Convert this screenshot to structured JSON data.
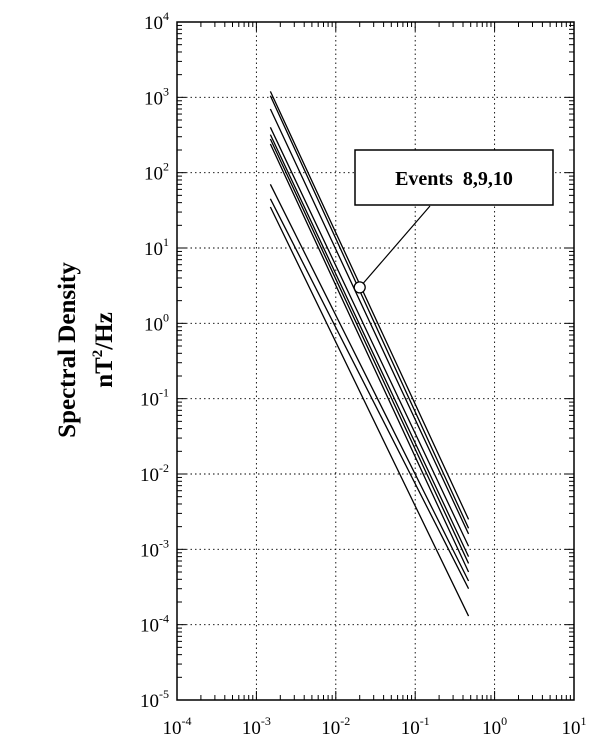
{
  "chart_data": {
    "type": "line",
    "title": "",
    "xlabel": "",
    "ylabel": "Spectral Density",
    "ylabel_units": {
      "base": "nT",
      "exp": "2",
      "rest": "/Hz"
    },
    "x_scale": "log",
    "y_scale": "log",
    "xlim": [
      0.0001,
      10
    ],
    "ylim": [
      1e-05,
      10000
    ],
    "grid": true,
    "x_ticks": [
      {
        "base": "10",
        "exp": "-4",
        "value": 0.0001
      },
      {
        "base": "10",
        "exp": "-3",
        "value": 0.001
      },
      {
        "base": "10",
        "exp": "-2",
        "value": 0.01
      },
      {
        "base": "10",
        "exp": "-1",
        "value": 0.1
      },
      {
        "base": "10",
        "exp": "0",
        "value": 1
      },
      {
        "base": "10",
        "exp": "1",
        "value": 10
      }
    ],
    "y_ticks": [
      {
        "base": "10",
        "exp": "4",
        "value": 10000
      },
      {
        "base": "10",
        "exp": "3",
        "value": 1000
      },
      {
        "base": "10",
        "exp": "2",
        "value": 100
      },
      {
        "base": "10",
        "exp": "1",
        "value": 10
      },
      {
        "base": "10",
        "exp": "0",
        "value": 1
      },
      {
        "base": "10",
        "exp": "-1",
        "value": 0.1
      },
      {
        "base": "10",
        "exp": "-2",
        "value": 0.01
      },
      {
        "base": "10",
        "exp": "-3",
        "value": 0.001
      },
      {
        "base": "10",
        "exp": "-4",
        "value": 0.0001
      },
      {
        "base": "10",
        "exp": "-5",
        "value": 1e-05
      }
    ],
    "series": [
      {
        "x": [
          0.0015,
          0.47
        ],
        "y": [
          1200,
          0.0025
        ]
      },
      {
        "x": [
          0.0015,
          0.47
        ],
        "y": [
          1050,
          0.0019
        ]
      },
      {
        "x": [
          0.0015,
          0.47
        ],
        "y": [
          700,
          0.0016
        ]
      },
      {
        "x": [
          0.0015,
          0.47
        ],
        "y": [
          400,
          0.0011
        ]
      },
      {
        "x": [
          0.0015,
          0.47
        ],
        "y": [
          320,
          0.0008
        ]
      },
      {
        "x": [
          0.0015,
          0.47
        ],
        "y": [
          280,
          0.00065
        ]
      },
      {
        "x": [
          0.0015,
          0.47
        ],
        "y": [
          240,
          0.0005
        ]
      },
      {
        "x": [
          0.0015,
          0.47
        ],
        "y": [
          70,
          0.00038
        ]
      },
      {
        "x": [
          0.0015,
          0.47
        ],
        "y": [
          45,
          0.0003
        ]
      },
      {
        "x": [
          0.0015,
          0.47
        ],
        "y": [
          35,
          0.00013
        ]
      }
    ],
    "annotation": {
      "text": "Events  8,9,10",
      "marker_x": 0.02,
      "marker_y": 3.0
    }
  }
}
